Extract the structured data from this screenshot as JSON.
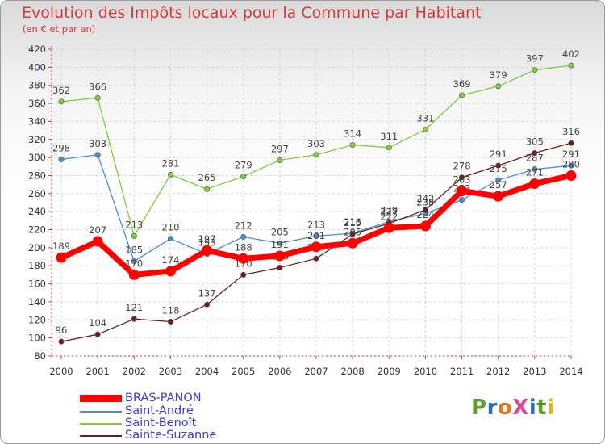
{
  "title": "Evolution des Impôts locaux pour la Commune par Habitant",
  "subtitle": "(en € et par an)",
  "logo": {
    "text": "ProXiti",
    "colors": [
      "#5a9e2f",
      "#2f6db3",
      "#e07a18",
      "#d84b9a",
      "#2f6db3",
      "#5a9e2f",
      "#e0b418"
    ]
  },
  "chart_data": {
    "type": "line",
    "title": "Evolution des Impôts locaux pour la Commune par Habitant",
    "subtitle": "(en € et par an)",
    "xlabel": "",
    "ylabel": "",
    "categories": [
      "2000",
      "2001",
      "2002",
      "2003",
      "2004",
      "2005",
      "2006",
      "2007",
      "2008",
      "2009",
      "2010",
      "2011",
      "2012",
      "2013",
      "2014"
    ],
    "ylim": [
      80,
      420
    ],
    "yticks": [
      "80",
      "100",
      "120",
      "140",
      "160",
      "180",
      "200",
      "220",
      "240",
      "260",
      "280",
      "300",
      "320",
      "340",
      "360",
      "380",
      "400",
      "420"
    ],
    "grid": true,
    "legend_position": "bottom-left",
    "series": [
      {
        "name": "Saint-Benoît",
        "color": "#7dce3c",
        "values": [
          362,
          366,
          213,
          281,
          265,
          279,
          297,
          303,
          314,
          311,
          331,
          369,
          379,
          397,
          402
        ]
      },
      {
        "name": "Saint-André",
        "color": "#4a8fcc",
        "values": [
          298,
          303,
          185,
          210,
          193,
          212,
          205,
          213,
          216,
          229,
          238,
          253,
          275,
          287,
          291
        ]
      },
      {
        "name": "Sainte-Suzanne",
        "color": "#6b1e1e",
        "values": [
          96,
          104,
          121,
          118,
          137,
          170,
          178,
          188,
          215,
          227,
          242,
          278,
          291,
          305,
          316
        ]
      },
      {
        "name": "BRAS-PANON",
        "color": "#ff0000",
        "values": [
          189,
          207,
          170,
          174,
          197,
          188,
          191,
          201,
          205,
          222,
          224,
          263,
          257,
          271,
          280
        ]
      }
    ],
    "legend": [
      "BRAS-PANON",
      "Saint-André",
      "Saint-Benoît",
      "Sainte-Suzanne"
    ]
  }
}
